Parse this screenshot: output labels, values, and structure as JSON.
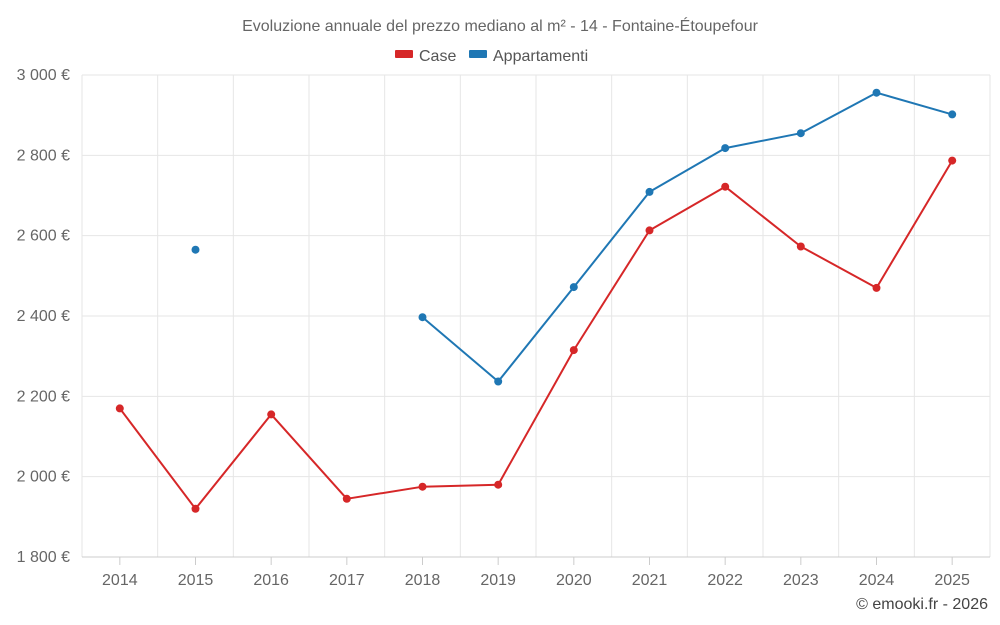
{
  "chart_data": {
    "type": "line",
    "title": "Evoluzione annuale del prezzo mediano al m² - 14 - Fontaine-Étoupefour",
    "categories": [
      "2014",
      "2015",
      "2016",
      "2017",
      "2018",
      "2019",
      "2020",
      "2021",
      "2022",
      "2023",
      "2024",
      "2025"
    ],
    "ylim": [
      1800,
      3000
    ],
    "yticks": [
      1800,
      2000,
      2200,
      2400,
      2600,
      2800,
      3000
    ],
    "ytick_labels": [
      "1 800 €",
      "2 000 €",
      "2 200 €",
      "2 400 €",
      "2 600 €",
      "2 800 €",
      "3 000 €"
    ],
    "xlabel": "",
    "ylabel": "",
    "grid": true,
    "legend_position": "top-center",
    "series": [
      {
        "name": "Case",
        "color": "#d62728",
        "values": [
          2170,
          1920,
          2155,
          1945,
          1975,
          1980,
          2315,
          2613,
          2722,
          2573,
          2470,
          2787
        ]
      },
      {
        "name": "Appartamenti",
        "color": "#1f77b4",
        "values": [
          null,
          2565,
          null,
          null,
          2397,
          2237,
          2472,
          2709,
          2818,
          2855,
          2956,
          2902
        ]
      }
    ]
  },
  "credit": "© emooki.fr - 2026"
}
